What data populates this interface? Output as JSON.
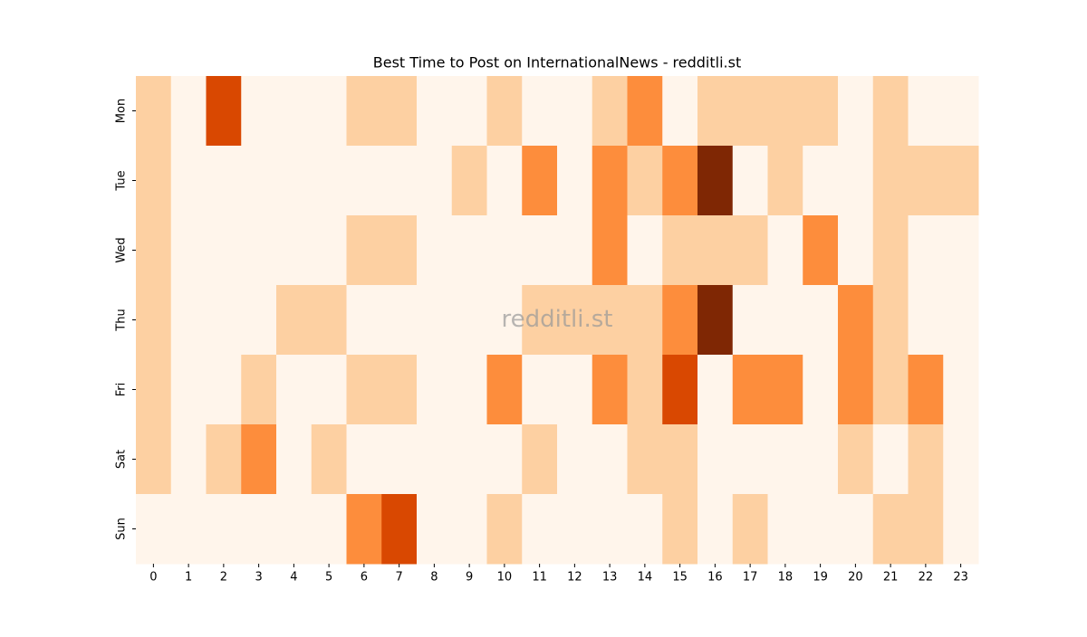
{
  "chart_data": {
    "type": "heatmap",
    "title": "Best Time to Post on InternationalNews - redditli.st",
    "watermark": "redditli.st",
    "x": [
      0,
      1,
      2,
      3,
      4,
      5,
      6,
      7,
      8,
      9,
      10,
      11,
      12,
      13,
      14,
      15,
      16,
      17,
      18,
      19,
      20,
      21,
      22,
      23
    ],
    "y": [
      "Mon",
      "Tue",
      "Wed",
      "Thu",
      "Fri",
      "Sat",
      "Sun"
    ],
    "values": [
      [
        1,
        0,
        3,
        0,
        0,
        0,
        1,
        1,
        0,
        0,
        1,
        0,
        0,
        1,
        2,
        0,
        1,
        1,
        1,
        1,
        0,
        1,
        0,
        0
      ],
      [
        1,
        0,
        0,
        0,
        0,
        0,
        0,
        0,
        0,
        1,
        0,
        2,
        0,
        2,
        1,
        2,
        4,
        0,
        1,
        0,
        0,
        1,
        1,
        1
      ],
      [
        1,
        0,
        0,
        0,
        0,
        0,
        1,
        1,
        0,
        0,
        0,
        0,
        0,
        2,
        0,
        1,
        1,
        1,
        0,
        2,
        0,
        1,
        0,
        0
      ],
      [
        1,
        0,
        0,
        0,
        1,
        1,
        0,
        0,
        0,
        0,
        0,
        1,
        1,
        1,
        1,
        2,
        4,
        0,
        0,
        0,
        2,
        1,
        0,
        0
      ],
      [
        1,
        0,
        0,
        1,
        0,
        0,
        1,
        1,
        0,
        0,
        2,
        0,
        0,
        2,
        1,
        3,
        0,
        2,
        2,
        0,
        2,
        1,
        2,
        0
      ],
      [
        1,
        0,
        1,
        2,
        0,
        1,
        0,
        0,
        0,
        0,
        0,
        1,
        0,
        0,
        1,
        1,
        0,
        0,
        0,
        0,
        1,
        0,
        1,
        0
      ],
      [
        0,
        0,
        0,
        0,
        0,
        0,
        2,
        3,
        0,
        0,
        1,
        0,
        0,
        0,
        0,
        1,
        0,
        1,
        0,
        0,
        0,
        1,
        1,
        0
      ]
    ],
    "vlim": [
      0,
      4
    ],
    "colormap": [
      "#fff5eb",
      "#fdd0a2",
      "#fd8d3c",
      "#d94801",
      "#7f2704"
    ]
  }
}
